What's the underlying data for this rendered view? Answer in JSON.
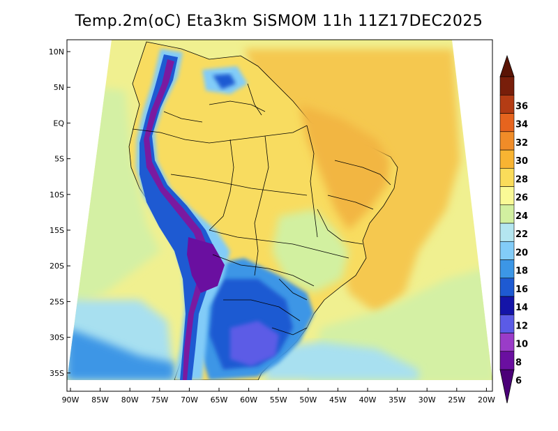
{
  "title": "Temp.2m(oC) Eta3km SiSMOM 11h 11Z17DEC2025",
  "lat_ticks": [
    "10N",
    "5N",
    "EQ",
    "5S",
    "10S",
    "15S",
    "20S",
    "25S",
    "30S",
    "35S"
  ],
  "lon_ticks": [
    "90W",
    "85W",
    "80W",
    "75W",
    "70W",
    "65W",
    "60W",
    "55W",
    "50W",
    "45W",
    "40W",
    "35W",
    "30W",
    "25W",
    "20W"
  ],
  "colorbar": {
    "labels": [
      "6",
      "8",
      "10",
      "12",
      "14",
      "16",
      "18",
      "20",
      "22",
      "24",
      "26",
      "28",
      "30",
      "32",
      "34",
      "36"
    ],
    "colors": [
      "#6a0fa0",
      "#9a3cc8",
      "#5b5be6",
      "#1414a8",
      "#1e5ad2",
      "#3c96e6",
      "#82ccf8",
      "#b4e6f0",
      "#d2f0a0",
      "#fafa96",
      "#fadc5a",
      "#f8b432",
      "#f08c28",
      "#e6641e",
      "#b43c14",
      "#781e0a"
    ],
    "under_color": "#4b0078",
    "over_color": "#5a1405"
  },
  "colors": {
    "ocean_warm": "#f5c850",
    "ocean_mild": "#f0f090",
    "ocean_cool": "#d4f0a4",
    "ocean_cold": "#a8e0f0",
    "land_warm": "#f8dc60",
    "land_hot": "#f2b642",
    "andes": "#7a1aa0"
  }
}
